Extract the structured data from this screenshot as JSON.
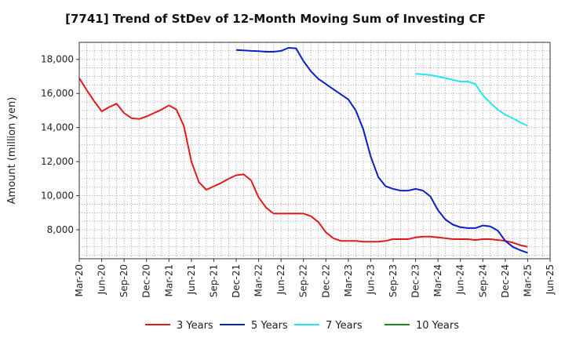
{
  "chart_data": {
    "type": "line",
    "title": "[7741]  Trend of StDev of 12-Month Moving Sum of Investing CF",
    "ylabel": "Amount (million yen)",
    "xlabel": "",
    "ylim": [
      6300,
      19000
    ],
    "yticks": [
      8000,
      10000,
      12000,
      14000,
      16000,
      18000
    ],
    "ytick_labels": [
      "8,000",
      "10,000",
      "12,000",
      "14,000",
      "16,000",
      "18,000"
    ],
    "x_range": [
      "2020-03",
      "2025-06"
    ],
    "xtick_labels": [
      "Mar-20",
      "Jun-20",
      "Sep-20",
      "Dec-20",
      "Mar-21",
      "Jun-21",
      "Sep-21",
      "Dec-21",
      "Mar-22",
      "Jun-22",
      "Sep-22",
      "Dec-22",
      "Mar-23",
      "Jun-23",
      "Sep-23",
      "Dec-23",
      "Mar-24",
      "Jun-24",
      "Sep-24",
      "Dec-24",
      "Mar-25",
      "Jun-25"
    ],
    "grid": true,
    "legend_position": "bottom",
    "series": [
      {
        "name": "3 Years",
        "color": "#e31a1c",
        "x": [
          "2020-03",
          "2020-04",
          "2020-05",
          "2020-06",
          "2020-07",
          "2020-08",
          "2020-09",
          "2020-10",
          "2020-11",
          "2020-12",
          "2021-01",
          "2021-02",
          "2021-03",
          "2021-04",
          "2021-05",
          "2021-06",
          "2021-07",
          "2021-08",
          "2021-09",
          "2021-10",
          "2021-11",
          "2021-12",
          "2022-01",
          "2022-02",
          "2022-03",
          "2022-04",
          "2022-05",
          "2022-06",
          "2022-07",
          "2022-08",
          "2022-09",
          "2022-10",
          "2022-11",
          "2022-12",
          "2023-01",
          "2023-02",
          "2023-03",
          "2023-04",
          "2023-05",
          "2023-06",
          "2023-07",
          "2023-08",
          "2023-09",
          "2023-10",
          "2023-11",
          "2023-12",
          "2024-01",
          "2024-02",
          "2024-03",
          "2024-04",
          "2024-05",
          "2024-06",
          "2024-07",
          "2024-08",
          "2024-09",
          "2024-10",
          "2024-11",
          "2024-12",
          "2025-01",
          "2025-02",
          "2025-03"
        ],
        "values": [
          16900,
          16200,
          15550,
          14950,
          15200,
          15400,
          14850,
          14550,
          14500,
          14650,
          14850,
          15050,
          15300,
          15050,
          14100,
          12000,
          10800,
          10350,
          10550,
          10750,
          11000,
          11200,
          11250,
          10900,
          9900,
          9300,
          8950,
          8950,
          8950,
          8950,
          8950,
          8800,
          8450,
          7850,
          7500,
          7350,
          7350,
          7350,
          7300,
          7300,
          7300,
          7350,
          7450,
          7450,
          7450,
          7550,
          7600,
          7600,
          7550,
          7500,
          7450,
          7450,
          7450,
          7400,
          7450,
          7450,
          7400,
          7350,
          7250,
          7100,
          7000
        ]
      },
      {
        "name": "5 Years",
        "color": "#0b1fc8",
        "x": [
          "2021-12",
          "2022-01",
          "2022-02",
          "2022-03",
          "2022-04",
          "2022-05",
          "2022-06",
          "2022-07",
          "2022-08",
          "2022-09",
          "2022-10",
          "2022-11",
          "2022-12",
          "2023-01",
          "2023-02",
          "2023-03",
          "2023-04",
          "2023-05",
          "2023-06",
          "2023-07",
          "2023-08",
          "2023-09",
          "2023-10",
          "2023-11",
          "2023-12",
          "2024-01",
          "2024-02",
          "2024-03",
          "2024-04",
          "2024-05",
          "2024-06",
          "2024-07",
          "2024-08",
          "2024-09",
          "2024-10",
          "2024-11",
          "2024-12",
          "2025-01",
          "2025-02",
          "2025-03"
        ],
        "values": [
          18550,
          18530,
          18500,
          18480,
          18450,
          18450,
          18500,
          18680,
          18650,
          17900,
          17300,
          16850,
          16550,
          16250,
          15950,
          15650,
          15000,
          13900,
          12300,
          11100,
          10550,
          10400,
          10300,
          10300,
          10400,
          10300,
          9950,
          9150,
          8600,
          8300,
          8150,
          8100,
          8100,
          8250,
          8200,
          7950,
          7350,
          7000,
          6800,
          6650
        ]
      },
      {
        "name": "7 Years",
        "color": "#22e6f0",
        "x": [
          "2023-12",
          "2024-01",
          "2024-02",
          "2024-03",
          "2024-04",
          "2024-05",
          "2024-06",
          "2024-07",
          "2024-08",
          "2024-09",
          "2024-10",
          "2024-11",
          "2024-12",
          "2025-01",
          "2025-02",
          "2025-03"
        ],
        "values": [
          17150,
          17120,
          17080,
          17000,
          16900,
          16800,
          16700,
          16700,
          16550,
          15900,
          15450,
          15050,
          14750,
          14550,
          14300,
          14100
        ]
      },
      {
        "name": "10 Years",
        "color": "#1a8c1a",
        "x": [],
        "values": []
      }
    ]
  }
}
